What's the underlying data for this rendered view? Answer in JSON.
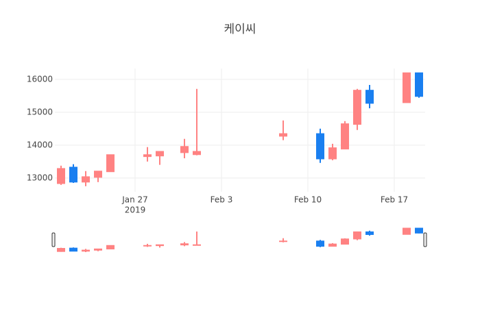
{
  "chart_data": {
    "type": "candlestick",
    "title": "케이씨",
    "x": [
      "2019-01-21",
      "2019-01-22",
      "2019-01-23",
      "2019-01-24",
      "2019-01-25",
      "2019-01-28",
      "2019-01-29",
      "2019-01-31",
      "2019-02-01",
      "2019-02-08",
      "2019-02-11",
      "2019-02-12",
      "2019-02-13",
      "2019-02-14",
      "2019-02-15",
      "2019-02-18",
      "2019-02-19"
    ],
    "open": [
      13290,
      12875,
      13040,
      13210,
      13710,
      13710,
      13810,
      13960,
      13810,
      14350,
      13580,
      13920,
      14650,
      15670,
      15270,
      16200,
      15480
    ],
    "high": [
      13375,
      13420,
      13210,
      13210,
      13710,
      13940,
      13810,
      14190,
      15710,
      14750,
      14500,
      14040,
      14730,
      15710,
      15830,
      16200,
      16200
    ],
    "low": [
      12790,
      12850,
      12750,
      12875,
      13190,
      13500,
      13400,
      13600,
      13690,
      14150,
      13460,
      13540,
      13880,
      14460,
      15120,
      15290,
      15440
    ],
    "close": [
      12830,
      13330,
      12875,
      13020,
      13190,
      13650,
      13670,
      13770,
      13710,
      14270,
      14350,
      13580,
      13880,
      14630,
      15670,
      15290,
      16200
    ],
    "increasing_color": "#1a7ff0",
    "decreasing_color": "#ff8282",
    "xlim": [
      "2019-01-20T12:00:00Z",
      "2019-02-19T12:00:00Z"
    ],
    "xticks": [
      {
        "value": "2019-01-27",
        "label": "Jan 27",
        "sublabel": "2019"
      },
      {
        "value": "2019-02-03",
        "label": "Feb 3"
      },
      {
        "value": "2019-02-10",
        "label": "Feb 10"
      },
      {
        "value": "2019-02-17",
        "label": "Feb 17"
      }
    ],
    "ylim": [
      12580,
      16330
    ],
    "yticks": [
      13000,
      14000,
      15000,
      16000
    ],
    "grid": true,
    "rangeslider": true
  }
}
